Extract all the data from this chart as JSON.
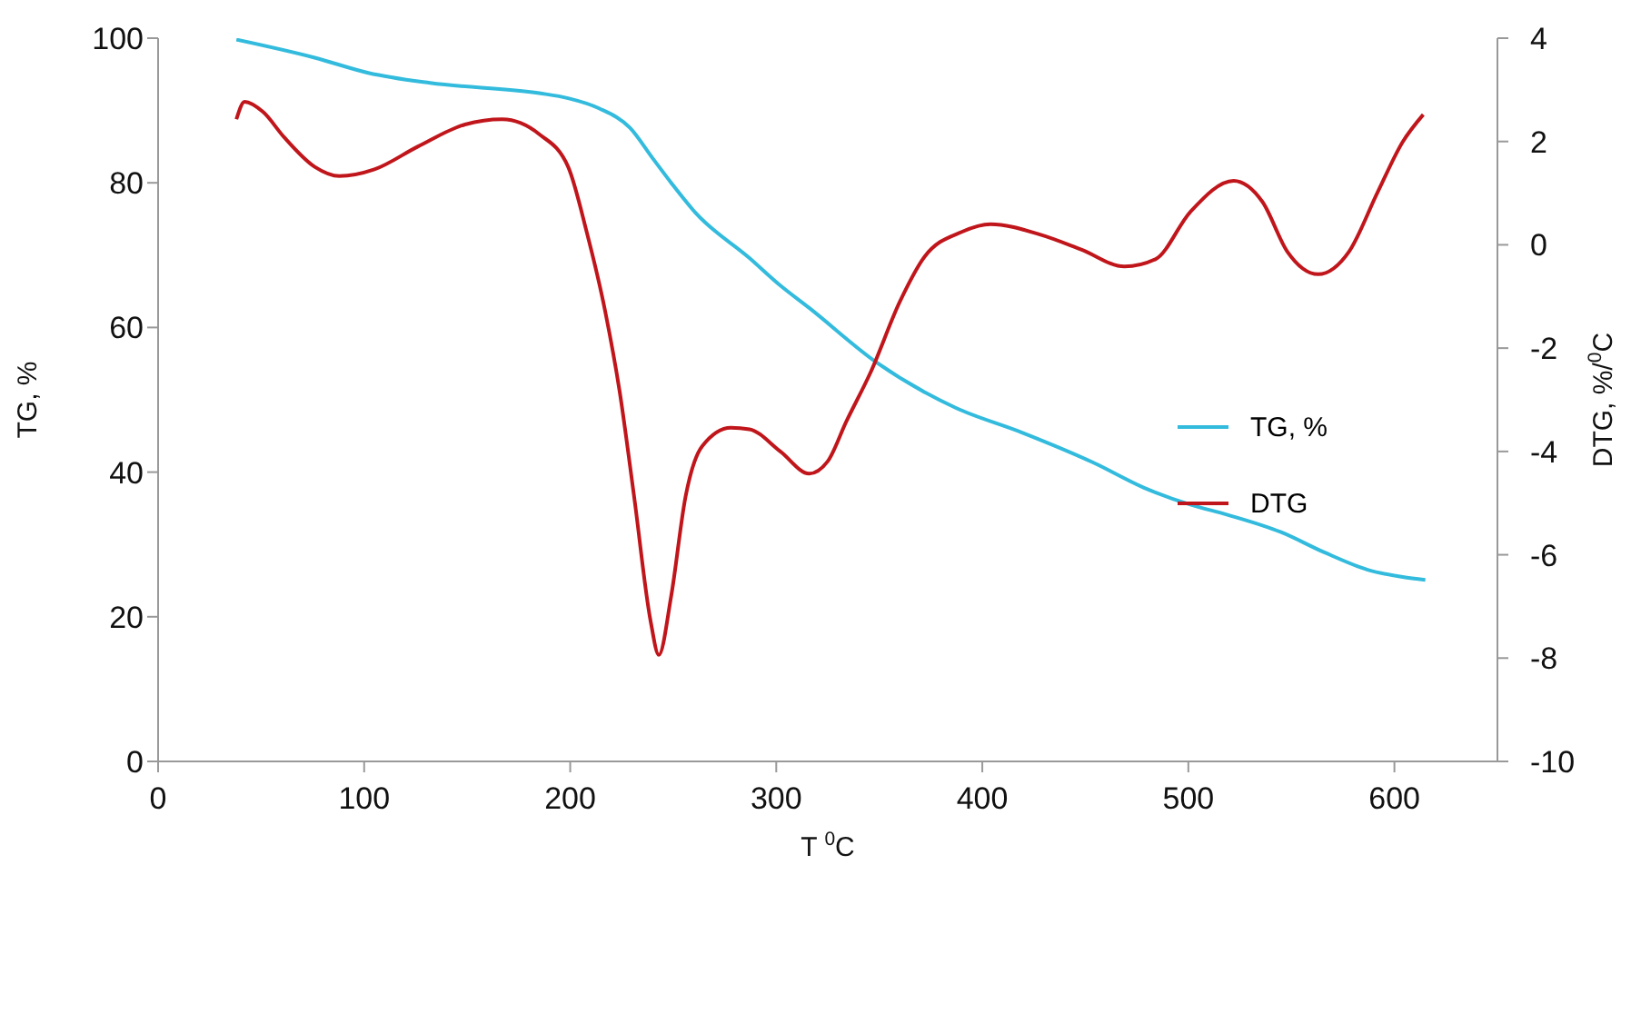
{
  "chart_data": {
    "type": "line",
    "xlabel": "T $^{0}$C",
    "ylabel": "TG, %",
    "y2label": "DTG, %/$^{0}$C",
    "xlim": [
      0,
      650
    ],
    "xticks": [
      0,
      100,
      200,
      300,
      400,
      500,
      600
    ],
    "ylim": [
      0,
      100
    ],
    "yticks": [
      0,
      20,
      40,
      60,
      80,
      100
    ],
    "y2lim": [
      -10,
      4
    ],
    "y2ticks": [
      -10,
      -8,
      -6,
      -4,
      -2,
      0,
      2,
      4
    ],
    "legend": "right",
    "series": [
      {
        "name": "TG, %",
        "color": "#33bbdd",
        "x": [
          38,
          76,
          102,
          132,
          185,
          199,
          214,
          229,
          240,
          249,
          261,
          287,
          302,
          316,
          349,
          387,
          419,
          454,
          478,
          501,
          519,
          545,
          566,
          587,
          604,
          615
        ],
        "values": [
          99.8,
          97.3,
          95.2,
          93.8,
          92.4,
          91.7,
          90.3,
          87.6,
          83.4,
          80.0,
          75.8,
          69.6,
          65.8,
          62.7,
          55.1,
          48.9,
          45.5,
          41.3,
          37.9,
          35.5,
          34.1,
          31.7,
          28.9,
          26.5,
          25.5,
          25.1
        ]
      },
      {
        "name": "DTG",
        "color": "#c0161b",
        "axis": "y2",
        "x": [
          38,
          42,
          51,
          61,
          76,
          88,
          105,
          126,
          149,
          167,
          185,
          199,
          208,
          217,
          224,
          231,
          239,
          243,
          249,
          256,
          264,
          278,
          287,
          302,
          316,
          325,
          334,
          346,
          360,
          372,
          390,
          404,
          428,
          448,
          469,
          484,
          501,
          522,
          536,
          548,
          563,
          578,
          592,
          604,
          614
        ],
        "values": [
          2.43,
          2.77,
          2.57,
          2.09,
          1.51,
          1.33,
          1.46,
          1.9,
          2.33,
          2.43,
          2.14,
          1.51,
          0.25,
          -1.29,
          -2.84,
          -4.87,
          -7.28,
          -7.94,
          -6.8,
          -4.87,
          -3.9,
          -3.54,
          -3.57,
          -4.0,
          -4.43,
          -4.19,
          -3.42,
          -2.45,
          -1.1,
          -0.23,
          0.25,
          0.4,
          0.2,
          -0.09,
          -0.42,
          -0.28,
          0.64,
          1.24,
          0.83,
          -0.13,
          -0.57,
          -0.13,
          1.03,
          1.99,
          2.52
        ]
      }
    ]
  }
}
